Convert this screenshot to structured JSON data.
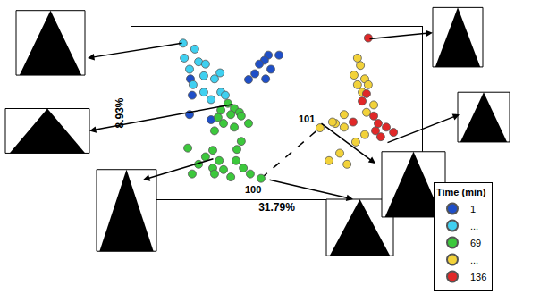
{
  "chart_data": {
    "type": "scatter",
    "x_label": "31.79%",
    "y_label": "8.93%",
    "xlim": [
      0,
      100
    ],
    "ylim": [
      0,
      100
    ],
    "tick_labels": false,
    "legend": "lower right",
    "legend_title": "Time (min)",
    "marker": "circle",
    "series": [
      {
        "name": "1",
        "color": "#1f4fc8",
        "x": [
          20.3,
          20,
          27.4,
          20.9,
          47.1,
          50.8,
          45.8,
          44,
          48,
          42.5,
          46.2,
          40.3
        ],
        "y": [
          69.8,
          49.1,
          46.1,
          60.3,
          83.6,
          83.6,
          80.6,
          78.4,
          75.4,
          72.8,
          69.8,
          69.4
        ]
      },
      {
        "name": "...",
        "color": "#40d0f0",
        "x": [
          17.8,
          21.8,
          18.2,
          23.1,
          20,
          25.5,
          30.5,
          24.9,
          28.6,
          21.2,
          24.9,
          30.8,
          27.4,
          32.3
        ],
        "y": [
          90.5,
          87.1,
          81.9,
          79.7,
          75.4,
          78.4,
          73.3,
          71.6,
          69.8,
          66.4,
          62.1,
          62.1,
          57.8,
          60.3
        ]
      },
      {
        "name": "69",
        "color": "#3cc83c",
        "x": [
          33.2,
          35.4,
          30.8,
          37.2,
          34.2,
          29.8,
          37.8,
          31.7,
          35.4,
          40.3,
          28.6,
          19.4,
          28,
          25.5,
          30.2,
          23.1,
          28,
          31.7,
          20.9,
          36,
          38.5,
          34.2,
          40.9,
          37.8,
          36.3,
          28.6,
          44.6
        ],
        "y": [
          55.6,
          52.6,
          51.7,
          50.4,
          49.1,
          47.4,
          48.3,
          44,
          41.8,
          44,
          39.7,
          29.7,
          28.4,
          24.6,
          22.4,
          20.3,
          18.1,
          17.2,
          14.7,
          22.4,
          18.1,
          12.9,
          14.7,
          33.6,
          28.9,
          14.7,
          12.1
        ]
      },
      {
        "name": "...",
        "color": "#f2d23a",
        "x": [
          77.8,
          78.8,
          76.6,
          80.3,
          77.8,
          81.5,
          79.4,
          83.4,
          80.9,
          73.2,
          70.2,
          73.2,
          69.2,
          77.2,
          71.7,
          68,
          74.2,
          80.3,
          64.9
        ],
        "y": [
          81.9,
          77.6,
          72,
          69.8,
          66.4,
          66.4,
          62.1,
          54.7,
          50.4,
          49.1,
          44,
          41.8,
          44.8,
          33.2,
          26.7,
          22.4,
          20.3,
          37.5,
          41.4
        ]
      },
      {
        "name": "136",
        "color": "#e02828",
        "x": [
          81.5,
          80.9,
          79.4,
          76.3,
          87.7,
          84,
          90.2,
          85.8,
          84.9,
          83.4
        ],
        "y": [
          93.5,
          61.2,
          56.9,
          44.8,
          41.8,
          39.7,
          38.8,
          36.2,
          44,
          48.3
        ]
      }
    ],
    "annotations": [
      {
        "text": "100",
        "x": 44.6,
        "y": 12.1
      },
      {
        "text": "101",
        "x": 64.9,
        "y": 41.4
      }
    ]
  }
}
